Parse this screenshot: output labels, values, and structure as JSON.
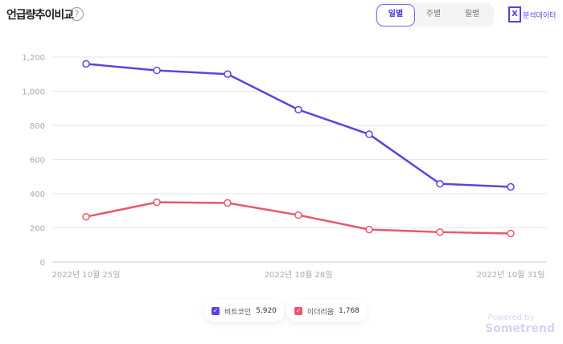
{
  "header": {
    "title": "언급량추이비교",
    "help_icon": "?",
    "tabs": [
      "일별",
      "주별",
      "월별"
    ],
    "active_tab": 0,
    "export_label": "분석데이터",
    "export_icon": "X"
  },
  "chart_data": {
    "type": "line",
    "x": [
      "2022년 10월 25일",
      "2022년 10월 26일",
      "2022년 10월 27일",
      "2022년 10월 28일",
      "2022년 10월 29일",
      "2022년 10월 30일",
      "2022년 10월 31일"
    ],
    "x_tick_labels": [
      "2022년 10월 25일",
      "2022년 10월 28일",
      "2022년 10월 31일"
    ],
    "yticks": [
      "0",
      "200",
      "400",
      "600",
      "800",
      "1,000",
      "1,200"
    ],
    "ylim": [
      0,
      1200
    ],
    "grid": true,
    "series": [
      {
        "name": "비트코인",
        "total": "5,920",
        "color": "#5b45e0",
        "values": [
          1160,
          1122,
          1100,
          892,
          748,
          458,
          440
        ]
      },
      {
        "name": "이더리움",
        "total": "1,768",
        "color": "#e8576f",
        "values": [
          265,
          350,
          346,
          275,
          190,
          175,
          167
        ]
      }
    ],
    "legend": "bottom"
  },
  "footer": {
    "powered": "Powered by",
    "brand": "Sometrend"
  }
}
